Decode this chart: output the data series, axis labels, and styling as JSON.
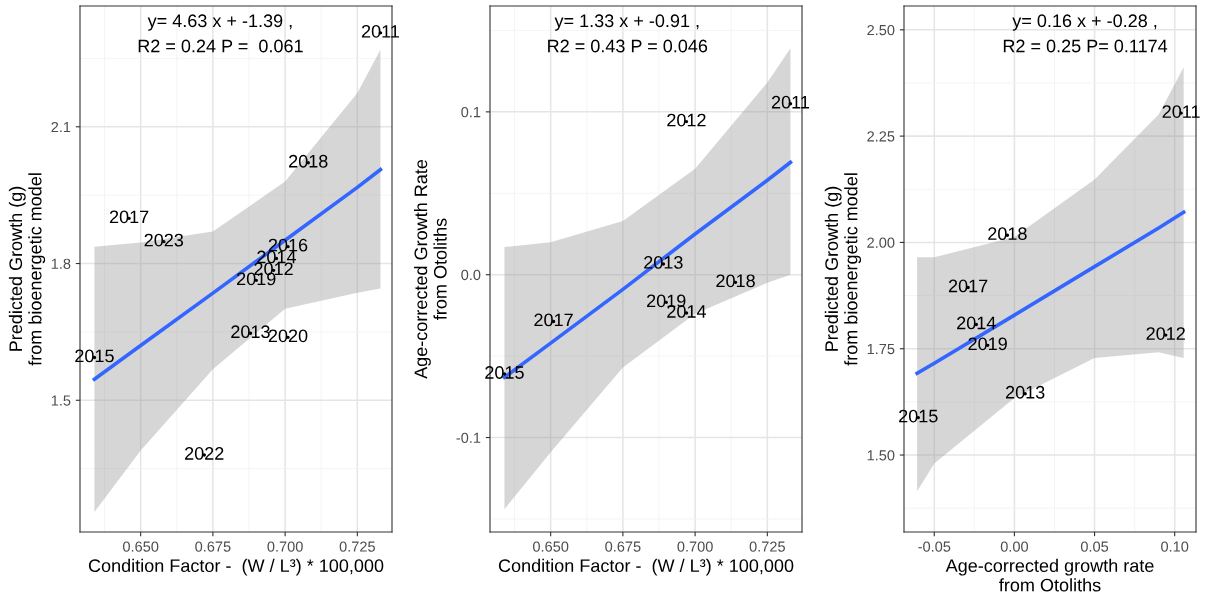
{
  "chart_data": [
    {
      "type": "scatter",
      "xlabel": "Condition Factor -  (W / L³) * 100,000",
      "ylabel": "Predicted Growth (g)\nfrom bioenergetic model",
      "xlim": [
        0.629,
        0.737
      ],
      "ylim": [
        1.211,
        2.365
      ],
      "xticks": [
        {
          "value": 0.65,
          "label": "0.650"
        },
        {
          "value": 0.675,
          "label": "0.675"
        },
        {
          "value": 0.7,
          "label": "0.700"
        },
        {
          "value": 0.725,
          "label": "0.725"
        }
      ],
      "yticks": [
        1.5,
        1.8,
        2.1
      ],
      "grid": true,
      "series": [
        {
          "type": "line",
          "color": "#3366ff",
          "x": [
            0.634,
            0.65,
            0.675,
            0.7,
            0.725,
            0.733
          ],
          "values": [
            1.546,
            1.62,
            1.735,
            1.851,
            1.967,
            2.006
          ],
          "lower": [
            1.255,
            1.39,
            1.568,
            1.701,
            1.736,
            1.745
          ],
          "upper": [
            1.837,
            1.846,
            1.87,
            1.98,
            2.174,
            2.269
          ]
        },
        {
          "marker": "circle",
          "x": [
            0.733,
            0.708,
            0.646,
            0.658,
            0.701,
            0.697,
            0.696,
            0.69,
            0.688,
            0.701,
            0.634,
            0.672
          ],
          "values": [
            2.306,
            2.021,
            1.899,
            1.848,
            1.837,
            1.811,
            1.785,
            1.763,
            1.647,
            1.638,
            1.594,
            1.38
          ]
        }
      ],
      "annotations": [
        "y= 4.63 x + -1.39 ,",
        "R2 = 0.24 P =  0.061",
        {
          "text": "2011",
          "x": 0.733,
          "y": 2.306
        },
        {
          "text": "2018",
          "x": 0.708,
          "y": 2.021
        },
        {
          "text": "2017",
          "x": 0.646,
          "y": 1.899
        },
        {
          "text": "2023",
          "x": 0.658,
          "y": 1.848
        },
        {
          "text": "2016",
          "x": 0.701,
          "y": 1.837
        },
        {
          "text": "2014",
          "x": 0.697,
          "y": 1.811
        },
        {
          "text": "2012",
          "x": 0.696,
          "y": 1.785
        },
        {
          "text": "2019",
          "x": 0.69,
          "y": 1.763
        },
        {
          "text": "2013",
          "x": 0.688,
          "y": 1.647
        },
        {
          "text": "2020",
          "x": 0.701,
          "y": 1.638
        },
        {
          "text": "2015",
          "x": 0.634,
          "y": 1.594
        },
        {
          "text": "2022",
          "x": 0.672,
          "y": 1.38
        }
      ]
    },
    {
      "type": "scatter",
      "xlabel": "Condition Factor -  (W / L³) * 100,000",
      "ylabel": "Age-corrected Growth Rate\nfrom Otoliths",
      "xlim": [
        0.629,
        0.737
      ],
      "ylim": [
        -0.158,
        0.165
      ],
      "xticks": [
        {
          "value": 0.65,
          "label": "0.650"
        },
        {
          "value": 0.675,
          "label": "0.675"
        },
        {
          "value": 0.7,
          "label": "0.700"
        },
        {
          "value": 0.725,
          "label": "0.725"
        }
      ],
      "yticks": [
        {
          "value": -0.1,
          "label": "-0.1"
        },
        {
          "value": 0,
          "label": "0.0"
        },
        {
          "value": 0.1,
          "label": "0.1"
        }
      ],
      "grid": true,
      "series": [
        {
          "type": "line",
          "color": "#3366ff",
          "x": [
            0.634,
            0.65,
            0.675,
            0.7,
            0.725,
            0.733
          ],
          "values": [
            -0.063,
            -0.042,
            -0.009,
            0.025,
            0.058,
            0.069
          ],
          "lower": [
            -0.144,
            -0.109,
            -0.057,
            -0.024,
            -0.005,
            0.0
          ],
          "upper": [
            0.017,
            0.02,
            0.033,
            0.065,
            0.118,
            0.139
          ]
        },
        {
          "marker": "circle",
          "x": [
            0.733,
            0.697,
            0.689,
            0.714,
            0.69,
            0.697,
            0.651,
            0.634
          ],
          "values": [
            0.105,
            0.094,
            0.0066,
            -0.0047,
            -0.017,
            -0.0235,
            -0.0287,
            -0.061
          ]
        }
      ],
      "annotations": [
        "y= 1.33 x + -0.91 ,",
        "R2 = 0.43 P = 0.046",
        {
          "text": "2011",
          "x": 0.733,
          "y": 0.105
        },
        {
          "text": "2012",
          "x": 0.697,
          "y": 0.094
        },
        {
          "text": "2013",
          "x": 0.689,
          "y": 0.0066
        },
        {
          "text": "2018",
          "x": 0.714,
          "y": -0.0047
        },
        {
          "text": "2019",
          "x": 0.69,
          "y": -0.017
        },
        {
          "text": "2014",
          "x": 0.697,
          "y": -0.0235
        },
        {
          "text": "2017",
          "x": 0.651,
          "y": -0.0287
        },
        {
          "text": "2015",
          "x": 0.634,
          "y": -0.061
        }
      ]
    },
    {
      "type": "scatter",
      "xlabel": "Age-corrected growth rate\nfrom Otoliths",
      "ylabel": "Predicted Growth (g)\nfrom bioenergetic model",
      "xlim": [
        -0.0689,
        0.1133
      ],
      "ylim": [
        1.319,
        2.556
      ],
      "xticks": [
        {
          "value": -0.05,
          "label": "-0.05"
        },
        {
          "value": 0,
          "label": "0.00"
        },
        {
          "value": 0.05,
          "label": "0.05"
        },
        {
          "value": 0.1,
          "label": "0.10"
        }
      ],
      "yticks": [
        {
          "value": 1.5,
          "label": "1.50"
        },
        {
          "value": 1.75,
          "label": "1.75"
        },
        {
          "value": 2.0,
          "label": "2.00"
        },
        {
          "value": 2.25,
          "label": "2.25"
        },
        {
          "value": 2.5,
          "label": "2.50"
        }
      ],
      "grid": true,
      "series": [
        {
          "type": "line",
          "color": "#3366ff",
          "x": [
            -0.0607,
            -0.05,
            0.0,
            0.05,
            0.09,
            0.1056
          ],
          "values": [
            1.692,
            1.716,
            1.829,
            1.943,
            2.034,
            2.071
          ],
          "lower": [
            1.415,
            1.48,
            1.634,
            1.728,
            1.742,
            1.728
          ],
          "upper": [
            1.965,
            1.965,
            2.013,
            2.148,
            2.301,
            2.412
          ]
        },
        {
          "marker": "circle",
          "x": [
            0.104,
            -0.0044,
            -0.0289,
            -0.0238,
            -0.0167,
            0.0944,
            0.0067,
            -0.06
          ],
          "values": [
            2.304,
            2.017,
            1.894,
            1.807,
            1.758,
            1.782,
            1.644,
            1.588
          ]
        }
      ],
      "annotations": [
        "y= 0.16 x + -0.28 ,",
        "R2 = 0.25 P= 0.1174",
        {
          "text": "2011",
          "x": 0.104,
          "y": 2.304
        },
        {
          "text": "2018",
          "x": -0.0044,
          "y": 2.017
        },
        {
          "text": "2017",
          "x": -0.0289,
          "y": 1.894
        },
        {
          "text": "2014",
          "x": -0.0238,
          "y": 1.807
        },
        {
          "text": "2019",
          "x": -0.0167,
          "y": 1.758
        },
        {
          "text": "2012",
          "x": 0.0944,
          "y": 1.782
        },
        {
          "text": "2013",
          "x": 0.0067,
          "y": 1.644
        },
        {
          "text": "2015",
          "x": -0.06,
          "y": 1.588
        }
      ]
    }
  ]
}
